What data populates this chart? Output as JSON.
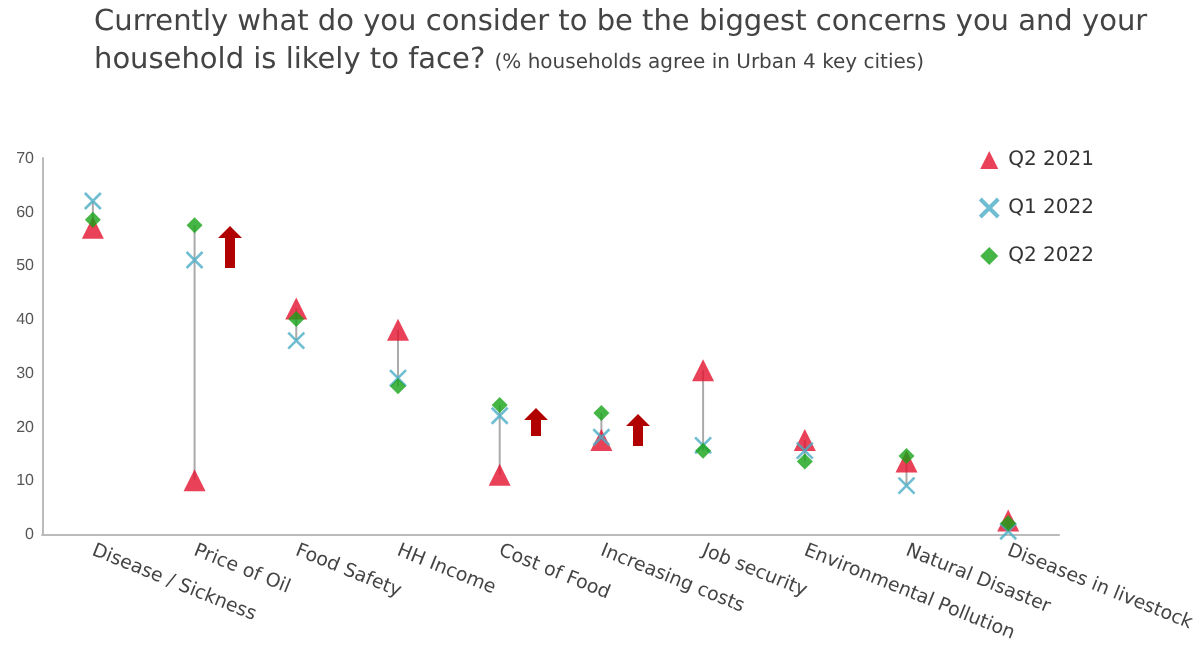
{
  "chart_data": {
    "type": "scatter",
    "title": "Currently what do you consider to be the biggest concerns you and your household is likely to face?",
    "subtitle": "(% households agree in Urban 4 key cities)",
    "categories": [
      "Disease / Sickness",
      "Price of Oil",
      "Food Safety",
      "HH Income",
      "Cost of Food",
      "Increasing costs",
      "Job security",
      "Environmental Pollution",
      "Natural Disaster",
      "Diseases in livestock"
    ],
    "series": [
      {
        "name": "Q2 2021",
        "color": "#e3112d",
        "marker": "triangle",
        "values": [
          57,
          10,
          42,
          38,
          11,
          17.5,
          30.5,
          17.5,
          13.5,
          2.5
        ]
      },
      {
        "name": "Q1 2022",
        "color": "#4bacc6",
        "marker": "cross",
        "values": [
          62,
          51,
          36,
          29,
          22,
          18,
          16.5,
          15.5,
          9,
          0.5
        ]
      },
      {
        "name": "Q2 2022",
        "color": "#17a317",
        "marker": "diamond",
        "values": [
          58.5,
          57.5,
          40,
          27.5,
          24,
          22.5,
          15.5,
          13.5,
          14.5,
          2
        ]
      }
    ],
    "ylim": [
      0,
      70
    ],
    "yticks": [
      0,
      10,
      20,
      30,
      40,
      50,
      60,
      70
    ],
    "grid": false,
    "legend": "top right"
  }
}
